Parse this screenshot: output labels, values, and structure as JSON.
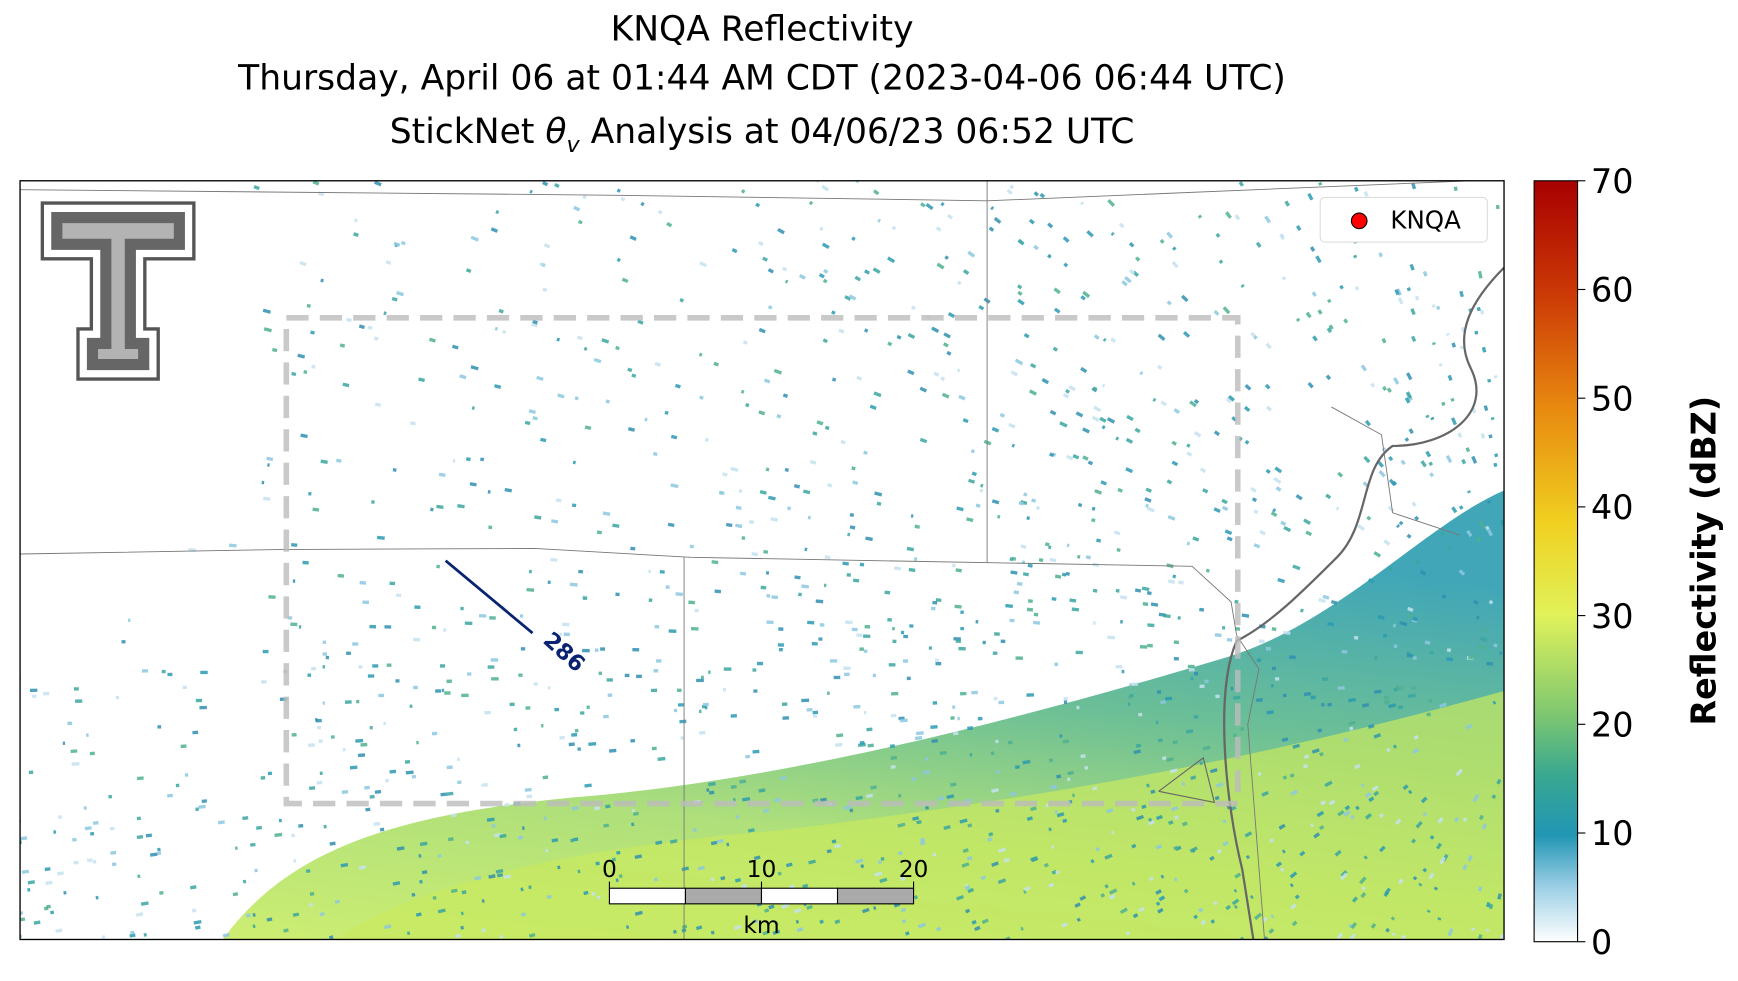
{
  "title": {
    "line1": "KNQA Reflectivity",
    "line2": "Thursday, April 06 at 01:44 AM CDT (2023-04-06 06:44 UTC)",
    "line3": {
      "before": "StickNet ",
      "symbol": "θ",
      "subscript": "v",
      "after": " Analysis at 04/06/23 06:52 UTC"
    }
  },
  "legend": {
    "label": "KNQA",
    "color": "#ff0000",
    "corner": "upper right"
  },
  "contour": {
    "label": "286"
  },
  "scale_bar": {
    "lim": [
      0,
      20
    ],
    "ticks": [
      0,
      10,
      20
    ],
    "units": "km"
  },
  "colorbar": {
    "label": "Reflectivity (dBZ)",
    "lim": [
      0,
      70
    ],
    "ticks": [
      0,
      10,
      20,
      30,
      40,
      50,
      60,
      70
    ]
  }
}
